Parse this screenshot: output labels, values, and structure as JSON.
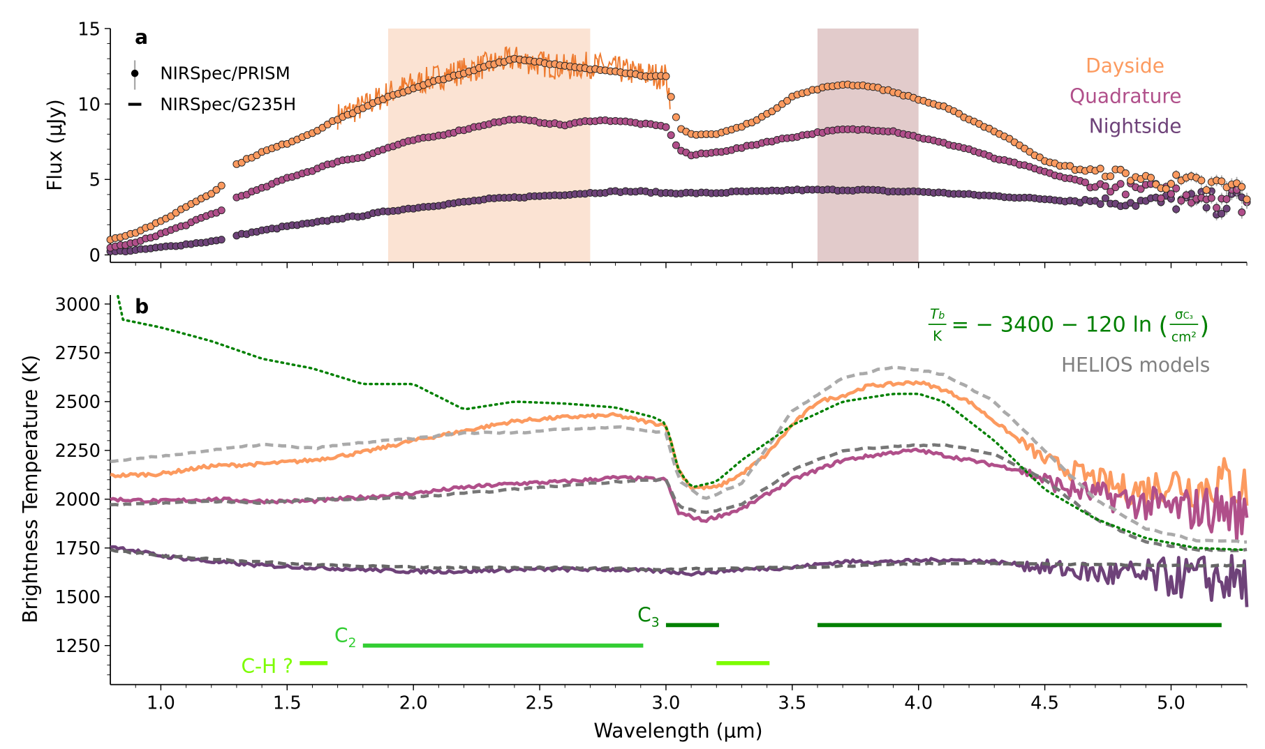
{
  "chart_data": [
    {
      "panel": "a",
      "type": "scatter",
      "xlabel": "",
      "ylabel": "Flux (µJy)",
      "xlim": [
        0.8,
        5.3
      ],
      "ylim": [
        -0.5,
        15
      ],
      "yticks": [
        0,
        5,
        10,
        15
      ],
      "shaded_regions": [
        {
          "x": [
            1.9,
            2.7
          ],
          "color": "#fbe3d3"
        },
        {
          "x": [
            3.6,
            4.0
          ],
          "color": "#e2cbcb"
        }
      ],
      "legend": [
        {
          "label": "NIRSpec/PRISM",
          "marker": "point-errorbar"
        },
        {
          "label": "NIRSpec/G235H",
          "marker": "dash"
        }
      ],
      "series_labels": [
        {
          "label": "Dayside",
          "color": "#fc9a5f"
        },
        {
          "label": "Quadrature",
          "color": "#b04f8a"
        },
        {
          "label": "Nightside",
          "color": "#6e4279"
        }
      ],
      "series": [
        {
          "name": "Dayside PRISM",
          "color": "#fc9a5f",
          "x": [
            0.8,
            0.9,
            1.0,
            1.1,
            1.2,
            1.25,
            1.3,
            1.4,
            1.5,
            1.6,
            1.7,
            1.8,
            1.9,
            2.0,
            2.1,
            2.2,
            2.3,
            2.4,
            2.5,
            2.6,
            2.7,
            2.8,
            2.9,
            3.0,
            3.05,
            3.1,
            3.2,
            3.3,
            3.4,
            3.5,
            3.6,
            3.7,
            3.8,
            3.9,
            4.0,
            4.1,
            4.2,
            4.3,
            4.4,
            4.5,
            4.6,
            4.7,
            4.8,
            4.9,
            5.0,
            5.1,
            5.2,
            5.3
          ],
          "y": [
            1.0,
            1.5,
            2.2,
            3.2,
            4.1,
            4.7,
            6.0,
            6.8,
            7.4,
            8.1,
            9.0,
            9.7,
            10.5,
            11.0,
            11.6,
            12.0,
            12.6,
            13.0,
            12.8,
            12.5,
            12.3,
            12.2,
            11.9,
            11.8,
            8.4,
            8.0,
            8.0,
            8.5,
            9.3,
            10.5,
            11.0,
            11.3,
            11.2,
            10.8,
            10.3,
            9.8,
            9.0,
            8.2,
            7.3,
            6.2,
            5.8,
            5.5,
            5.4,
            5.0,
            4.8,
            4.6,
            4.5,
            4.3
          ]
        },
        {
          "name": "Quadrature PRISM",
          "color": "#b04f8a",
          "x": [
            0.8,
            0.9,
            1.0,
            1.1,
            1.2,
            1.25,
            1.3,
            1.4,
            1.5,
            1.6,
            1.7,
            1.8,
            1.9,
            2.0,
            2.1,
            2.2,
            2.3,
            2.4,
            2.5,
            2.6,
            2.7,
            2.8,
            2.9,
            3.0,
            3.05,
            3.1,
            3.2,
            3.3,
            3.4,
            3.5,
            3.6,
            3.7,
            3.8,
            3.9,
            4.0,
            4.1,
            4.2,
            4.3,
            4.4,
            4.5,
            4.6,
            4.7,
            4.8,
            4.9,
            5.0,
            5.1,
            5.2,
            5.3
          ],
          "y": [
            0.5,
            0.8,
            1.4,
            2.0,
            2.7,
            3.0,
            3.8,
            4.4,
            5.1,
            5.6,
            6.2,
            6.5,
            7.1,
            7.6,
            7.9,
            8.3,
            8.7,
            9.0,
            8.8,
            8.6,
            8.9,
            8.9,
            8.7,
            8.5,
            7.0,
            6.6,
            6.8,
            7.1,
            7.5,
            7.8,
            8.1,
            8.3,
            8.3,
            8.2,
            7.8,
            7.4,
            7.0,
            6.4,
            6.0,
            5.5,
            5.0,
            4.6,
            4.4,
            4.3,
            4.2,
            4.0,
            3.9,
            3.6
          ]
        },
        {
          "name": "Nightside PRISM",
          "color": "#6e4279",
          "x": [
            0.8,
            0.9,
            1.0,
            1.1,
            1.2,
            1.25,
            1.3,
            1.4,
            1.5,
            1.6,
            1.7,
            1.8,
            1.9,
            2.0,
            2.1,
            2.2,
            2.3,
            2.4,
            2.5,
            2.6,
            2.7,
            2.8,
            2.9,
            3.0,
            3.1,
            3.2,
            3.3,
            3.4,
            3.5,
            3.6,
            3.7,
            3.8,
            3.9,
            4.0,
            4.1,
            4.2,
            4.3,
            4.4,
            4.5,
            4.6,
            4.7,
            4.8,
            4.9,
            5.0,
            5.1,
            5.2,
            5.3
          ],
          "y": [
            0.2,
            0.3,
            0.5,
            0.7,
            0.9,
            1.0,
            1.3,
            1.6,
            1.9,
            2.1,
            2.4,
            2.6,
            2.9,
            3.1,
            3.3,
            3.5,
            3.7,
            3.8,
            3.9,
            4.0,
            4.1,
            4.2,
            4.2,
            4.1,
            4.1,
            4.1,
            4.2,
            4.2,
            4.3,
            4.3,
            4.3,
            4.3,
            4.2,
            4.2,
            4.1,
            4.0,
            3.9,
            3.8,
            3.7,
            3.6,
            3.6,
            3.5,
            3.5,
            3.5,
            3.5,
            3.4,
            3.4
          ]
        },
        {
          "name": "Dayside G235H",
          "color": "#ee7a2e",
          "x": [
            1.7,
            1.8,
            1.9,
            2.0,
            2.1,
            2.2,
            2.3,
            2.4,
            2.5,
            2.6,
            2.7,
            2.8,
            2.9,
            3.0,
            3.02
          ],
          "y": [
            9.2,
            9.8,
            10.7,
            11.3,
            11.8,
            12.2,
            12.6,
            13.0,
            12.7,
            12.4,
            12.6,
            12.3,
            12.0,
            11.8,
            10.2
          ]
        }
      ]
    },
    {
      "panel": "b",
      "type": "line",
      "xlabel": "Wavelength (µm)",
      "ylabel": "Brightness Temperature (K)",
      "xlim": [
        0.8,
        5.3
      ],
      "ylim": [
        1050,
        3046
      ],
      "xticks": [
        "1.0",
        "1.5",
        "2.0",
        "2.5",
        "3.0",
        "3.5",
        "4.0",
        "4.5",
        "5.0"
      ],
      "yticks": [
        "1250",
        "1500",
        "1750",
        "2000",
        "2250",
        "2500",
        "2750",
        "3000"
      ],
      "equation": {
        "lhs_num": "T",
        "lhs_sub": "b",
        "lhs_den": "K",
        "rhs": "= − 3400 − 120 ln",
        "frac_num": "σ",
        "frac_sub": "C₃",
        "frac_den": "cm²",
        "color": "#008000"
      },
      "models_label": {
        "label": "HELIOS models",
        "color": "#808080"
      },
      "series": [
        {
          "name": "Dayside",
          "color": "#fc9a5f",
          "style": "solid",
          "x": [
            0.8,
            1.0,
            1.2,
            1.4,
            1.6,
            1.8,
            2.0,
            2.2,
            2.4,
            2.6,
            2.8,
            2.95,
            3.0,
            3.05,
            3.1,
            3.2,
            3.3,
            3.4,
            3.5,
            3.6,
            3.7,
            3.8,
            3.9,
            4.0,
            4.1,
            4.2,
            4.3,
            4.4,
            4.5,
            4.6,
            4.7,
            4.8,
            4.9,
            5.0,
            5.1,
            5.2,
            5.3
          ],
          "y": [
            2120,
            2130,
            2170,
            2180,
            2200,
            2240,
            2300,
            2350,
            2400,
            2420,
            2430,
            2390,
            2380,
            2150,
            2060,
            2060,
            2130,
            2230,
            2380,
            2500,
            2530,
            2580,
            2590,
            2600,
            2560,
            2500,
            2400,
            2300,
            2200,
            2150,
            2100,
            2050,
            2050,
            2100,
            2050,
            2100,
            2050
          ]
        },
        {
          "name": "Quadrature",
          "color": "#b04f8a",
          "style": "solid",
          "x": [
            0.8,
            1.0,
            1.2,
            1.4,
            1.6,
            1.8,
            2.0,
            2.2,
            2.4,
            2.6,
            2.8,
            3.0,
            3.05,
            3.15,
            3.3,
            3.5,
            3.7,
            3.9,
            4.0,
            4.2,
            4.4,
            4.6,
            4.8,
            5.0,
            5.2,
            5.3
          ],
          "y": [
            2000,
            1990,
            2000,
            1990,
            1990,
            2010,
            2030,
            2060,
            2080,
            2090,
            2110,
            2100,
            1930,
            1890,
            1950,
            2100,
            2200,
            2240,
            2250,
            2200,
            2150,
            2050,
            2000,
            1950,
            1950,
            1900
          ]
        },
        {
          "name": "Nightside",
          "color": "#6e4279",
          "style": "solid",
          "x": [
            0.8,
            1.0,
            1.2,
            1.4,
            1.6,
            1.8,
            2.0,
            2.2,
            2.4,
            2.6,
            2.8,
            3.0,
            3.1,
            3.3,
            3.5,
            3.7,
            3.9,
            4.1,
            4.3,
            4.5,
            4.7,
            4.9,
            5.1,
            5.3
          ],
          "y": [
            1760,
            1710,
            1680,
            1660,
            1650,
            1640,
            1630,
            1630,
            1640,
            1640,
            1640,
            1630,
            1620,
            1640,
            1650,
            1680,
            1680,
            1690,
            1680,
            1650,
            1620,
            1600,
            1600,
            1580
          ]
        },
        {
          "name": "HELIOS dayside",
          "color": "#aaaaaa",
          "style": "dashed",
          "x": [
            0.8,
            1.0,
            1.2,
            1.4,
            1.6,
            1.8,
            2.0,
            2.2,
            2.4,
            2.6,
            2.8,
            3.0,
            3.05,
            3.15,
            3.3,
            3.5,
            3.7,
            3.9,
            4.1,
            4.3,
            4.5,
            4.7,
            4.9,
            5.1,
            5.3
          ],
          "y": [
            2190,
            2220,
            2250,
            2280,
            2260,
            2290,
            2310,
            2340,
            2340,
            2360,
            2370,
            2340,
            2100,
            2000,
            2080,
            2450,
            2620,
            2680,
            2640,
            2500,
            2250,
            2000,
            1850,
            1790,
            1780
          ]
        },
        {
          "name": "HELIOS quadrature",
          "color": "#777777",
          "style": "dashed",
          "x": [
            0.8,
            1.0,
            1.2,
            1.4,
            1.6,
            1.8,
            2.0,
            2.2,
            2.4,
            2.6,
            2.8,
            3.0,
            3.05,
            3.15,
            3.3,
            3.5,
            3.7,
            3.9,
            4.1,
            4.3,
            4.5,
            4.7,
            4.9,
            5.1,
            5.3
          ],
          "y": [
            1970,
            1980,
            1990,
            1980,
            2000,
            2000,
            2010,
            2030,
            2050,
            2070,
            2090,
            2100,
            1960,
            1930,
            1970,
            2150,
            2250,
            2270,
            2280,
            2230,
            2100,
            1900,
            1780,
            1740,
            1740
          ]
        },
        {
          "name": "HELIOS nightside",
          "color": "#666666",
          "style": "dashed",
          "x": [
            0.8,
            1.0,
            1.5,
            2.0,
            2.5,
            3.0,
            3.5,
            4.0,
            4.5,
            5.0,
            5.3
          ],
          "y": [
            1740,
            1710,
            1670,
            1650,
            1650,
            1640,
            1650,
            1670,
            1670,
            1660,
            1660
          ]
        },
        {
          "name": "C3 cross-section fit",
          "color": "#008000",
          "style": "dotted",
          "x": [
            0.83,
            0.85,
            1.0,
            1.2,
            1.4,
            1.6,
            1.8,
            2.0,
            2.2,
            2.4,
            2.6,
            2.8,
            2.95,
            3.0,
            3.05,
            3.1,
            3.2,
            3.3,
            3.5,
            3.7,
            3.9,
            4.0,
            4.1,
            4.3,
            4.5,
            4.7,
            4.9,
            5.1,
            5.3
          ],
          "y": [
            3040,
            2920,
            2880,
            2810,
            2720,
            2670,
            2590,
            2590,
            2460,
            2500,
            2490,
            2470,
            2420,
            2390,
            2150,
            2060,
            2090,
            2200,
            2380,
            2500,
            2540,
            2540,
            2500,
            2300,
            2050,
            1900,
            1800,
            1750,
            1740
          ]
        }
      ],
      "bands": [
        {
          "label": "C-H ?",
          "color": "#7cfc00",
          "y": 1160,
          "ranges": [
            [
              1.55,
              1.66
            ],
            [
              3.2,
              3.41
            ]
          ]
        },
        {
          "label": "C",
          "sub": "2",
          "color": "#32cd32",
          "y": 1250,
          "ranges": [
            [
              1.8,
              2.91
            ]
          ]
        },
        {
          "label": "C",
          "sub": "3",
          "color": "#008000",
          "y": 1355,
          "ranges": [
            [
              3.0,
              3.21
            ],
            [
              3.6,
              5.2
            ]
          ]
        }
      ]
    }
  ],
  "panel_labels": [
    "a",
    "b"
  ]
}
